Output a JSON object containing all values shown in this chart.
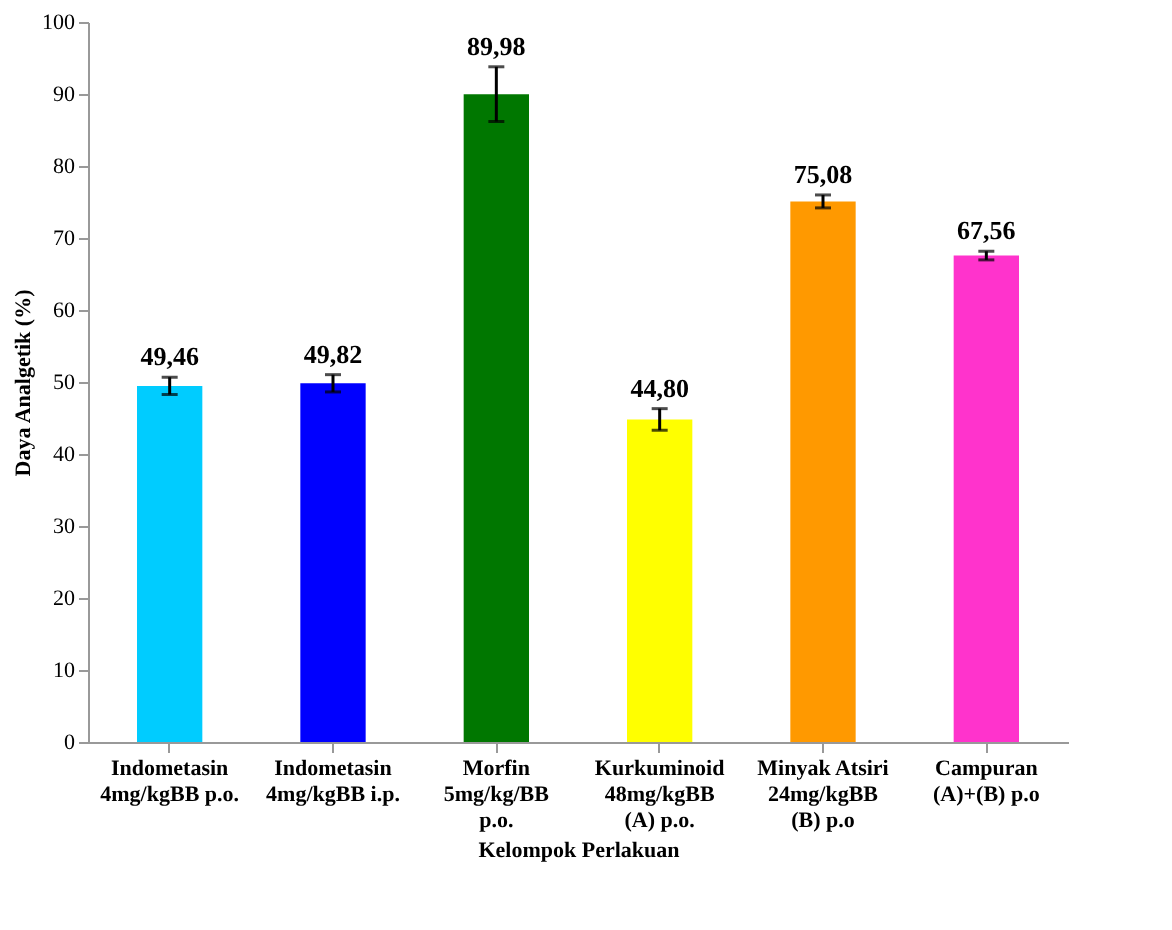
{
  "chart_data": {
    "type": "bar",
    "xlabel": "Kelompok Perlakuan",
    "ylabel": "Daya Analgetik (%)",
    "categories": [
      "Indometasin\n4mg/kgBB p.o.",
      "Indometasin\n4mg/kgBB i.p.",
      "Morfin\n5mg/kg/BB\np.o.",
      "Kurkuminoid\n48mg/kgBB\n(A) p.o.",
      "Minyak Atsiri\n24mg/kgBB\n(B) p.o",
      "Campuran\n(A)+(B) p.o"
    ],
    "values": [
      49.46,
      49.82,
      89.98,
      44.8,
      75.08,
      67.56
    ],
    "value_labels": [
      "49,46",
      "49,82",
      "89,98",
      "44,80",
      "75,08",
      "67,56"
    ],
    "errors": [
      1.2,
      1.2,
      3.8,
      1.5,
      0.9,
      0.6
    ],
    "colors": [
      "#00ccff",
      "#0000ff",
      "#007700",
      "#ffff00",
      "#ff9900",
      "#ff33cc"
    ],
    "ylim": [
      0,
      100
    ],
    "yticks": [
      0,
      10,
      20,
      30,
      40,
      50,
      60,
      70,
      80,
      90,
      100
    ],
    "grid": false
  }
}
